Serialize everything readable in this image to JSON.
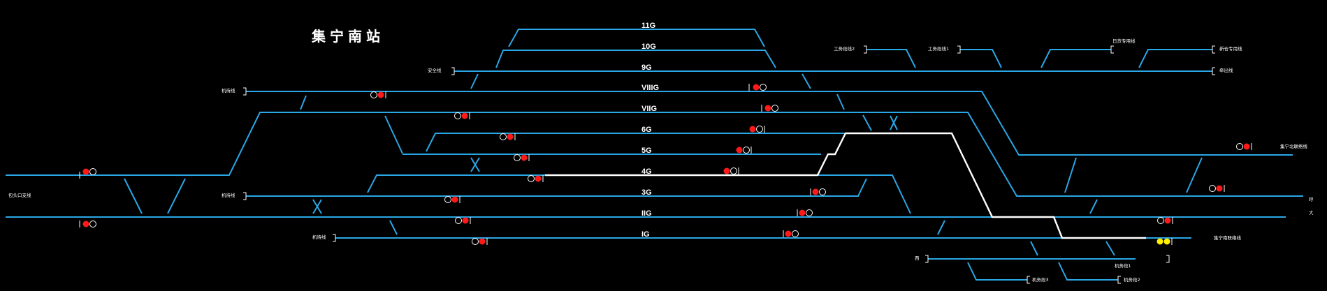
{
  "station": {
    "title": "集宁南站"
  },
  "tracks": [
    {
      "id": "11G",
      "label": "11G"
    },
    {
      "id": "10G",
      "label": "10G"
    },
    {
      "id": "9G",
      "label": "9G"
    },
    {
      "id": "VIIIG",
      "label": "VIIIG"
    },
    {
      "id": "VIIG",
      "label": "VIIG"
    },
    {
      "id": "6G",
      "label": "6G"
    },
    {
      "id": "5G",
      "label": "5G"
    },
    {
      "id": "4G",
      "label": "4G"
    },
    {
      "id": "3G",
      "label": "3G"
    },
    {
      "id": "IIG",
      "label": "IIG"
    },
    {
      "id": "IG",
      "label": "IG"
    }
  ],
  "end_labels": {
    "anquan": "安全线",
    "qianchu_1": "机待线",
    "qianchu_2": "机待线",
    "qianchu_3": "机待线",
    "left_line": "包头口支线",
    "gongwu_2": "工务段线2",
    "gongwu_1": "工务段线1",
    "right_top_1": "日货专用线",
    "right_top_2": "新仓专用线",
    "right_9g": "牵出线",
    "right_main_1": "集宁北联络线",
    "right_main_2": "集宁南联络线",
    "right_far_1": "呼",
    "right_far_2": "大",
    "bottom_left": "西",
    "jiwu_1": "机务段1",
    "jiwu_2": "机务段2",
    "jiwu_3": "机务段3"
  },
  "colors": {
    "track": "#2aa7e6",
    "route": "#ffffff",
    "signal_stop": "#ff1a1a",
    "signal_caution": "#ffee00",
    "background": "#000000"
  }
}
